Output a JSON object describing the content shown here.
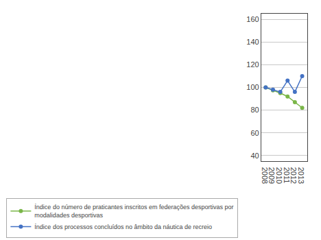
{
  "chart_data": {
    "type": "line",
    "x": [
      2008,
      2009,
      2010,
      2011,
      2012,
      2013
    ],
    "series": [
      {
        "name": "Índice do número de praticantes inscritos em federações desportivas por\nmodalidades desportivas",
        "color": "#7AB648",
        "values": [
          100,
          97.5,
          95,
          92,
          87,
          82
        ],
        "marker": "circle",
        "line_style": "solid"
      },
      {
        "name": "Índice dos processos concluídos no âmbito da náutica de recreio",
        "color": "#4472C4",
        "values": [
          100,
          98,
          96,
          106,
          96,
          110
        ],
        "marker": "circle",
        "line_style": "solid"
      }
    ],
    "xlim": [
      2007.4,
      2013.7
    ],
    "xticks": [
      2008,
      2009,
      2010,
      2011,
      2012,
      2013
    ],
    "ylim": [
      35,
      165
    ],
    "yticks": [
      40,
      60,
      80,
      100,
      120,
      140,
      160
    ],
    "grid": true,
    "legend": "lower left"
  }
}
